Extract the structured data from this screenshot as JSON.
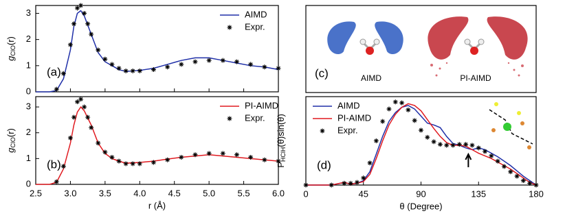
{
  "chart_data": [
    {
      "type": "line",
      "panel_label": "(a)",
      "y_label": {
        "main": "g",
        "sub": "ClO",
        "tail": "(r)"
      },
      "xlim": [
        2.5,
        6.0
      ],
      "xticks": [
        2.5,
        3,
        3.5,
        4,
        4.5,
        5,
        5.5,
        6
      ],
      "show_xtick_labels": false,
      "ylim": [
        0,
        3.3
      ],
      "yticks": [
        0,
        1,
        2,
        3
      ],
      "legend": "upper right",
      "series": [
        {
          "name": "AIMD",
          "color": "#1f2fa8",
          "style": "line",
          "x": [
            2.5,
            2.7,
            2.8,
            2.9,
            3.0,
            3.05,
            3.1,
            3.15,
            3.2,
            3.3,
            3.4,
            3.5,
            3.6,
            3.7,
            3.8,
            4.0,
            4.2,
            4.4,
            4.6,
            4.8,
            5.0,
            5.2,
            5.4,
            5.6,
            5.8,
            6.0
          ],
          "values": [
            0,
            0,
            0.05,
            0.5,
            1.6,
            2.5,
            3.0,
            3.1,
            2.9,
            2.2,
            1.5,
            1.15,
            1.0,
            0.85,
            0.78,
            0.82,
            0.9,
            1.05,
            1.2,
            1.3,
            1.3,
            1.2,
            1.1,
            1.0,
            0.95,
            0.85
          ]
        },
        {
          "name": "Expr.",
          "color": "#000000",
          "style": "star",
          "x": [
            2.8,
            2.9,
            3.0,
            3.05,
            3.1,
            3.15,
            3.2,
            3.25,
            3.3,
            3.4,
            3.5,
            3.6,
            3.7,
            3.8,
            3.9,
            4.0,
            4.2,
            4.4,
            4.6,
            4.8,
            5.0,
            5.2,
            5.4,
            5.6,
            5.8,
            6.0
          ],
          "values": [
            0.1,
            0.7,
            1.8,
            2.6,
            3.2,
            3.3,
            3.0,
            2.6,
            2.2,
            1.6,
            1.25,
            1.05,
            0.9,
            0.8,
            0.8,
            0.8,
            0.85,
            0.95,
            1.05,
            1.15,
            1.2,
            1.2,
            1.15,
            1.05,
            0.95,
            0.9
          ]
        }
      ]
    },
    {
      "type": "line",
      "panel_label": "(b)",
      "y_label": {
        "main": "g",
        "sub": "ClO",
        "tail": "(r)"
      },
      "x_label": "r (Å)",
      "xlim": [
        2.5,
        6.0
      ],
      "xticks": [
        2.5,
        {
          "value": 3,
          "label": "3.0"
        },
        3.5,
        {
          "value": 4,
          "label": "4.0"
        },
        4.5,
        {
          "value": 5,
          "label": "5.0"
        },
        5.5,
        {
          "value": 6,
          "label": "6.0"
        }
      ],
      "show_xtick_labels": true,
      "ylim": [
        0,
        3.4
      ],
      "yticks": [
        0,
        1,
        2,
        3
      ],
      "legend": "upper right",
      "series": [
        {
          "name": "PI-AIMD",
          "color": "#e0191f",
          "style": "line",
          "x": [
            2.5,
            2.7,
            2.8,
            2.9,
            3.0,
            3.05,
            3.1,
            3.15,
            3.2,
            3.3,
            3.4,
            3.5,
            3.6,
            3.7,
            3.8,
            4.0,
            4.2,
            4.4,
            4.6,
            4.8,
            5.0,
            5.2,
            5.4,
            5.6,
            5.8,
            6.0
          ],
          "values": [
            0,
            0,
            0.08,
            0.6,
            1.6,
            2.3,
            2.8,
            3.0,
            2.85,
            2.3,
            1.6,
            1.2,
            1.0,
            0.9,
            0.82,
            0.85,
            0.9,
            0.98,
            1.05,
            1.1,
            1.15,
            1.1,
            1.05,
            1.0,
            0.95,
            0.9
          ]
        },
        {
          "name": "Expr.",
          "color": "#000000",
          "style": "star",
          "x": [
            2.8,
            2.9,
            3.0,
            3.05,
            3.1,
            3.15,
            3.2,
            3.25,
            3.3,
            3.4,
            3.5,
            3.6,
            3.7,
            3.8,
            3.9,
            4.0,
            4.2,
            4.4,
            4.6,
            4.8,
            5.0,
            5.2,
            5.4,
            5.6,
            5.8,
            6.0
          ],
          "values": [
            0.1,
            0.7,
            1.8,
            2.6,
            3.2,
            3.3,
            3.0,
            2.6,
            2.2,
            1.6,
            1.25,
            1.05,
            0.9,
            0.8,
            0.8,
            0.8,
            0.85,
            0.95,
            1.05,
            1.15,
            1.2,
            1.2,
            1.15,
            1.05,
            0.95,
            0.9
          ]
        }
      ]
    },
    {
      "type": "line",
      "panel_label": "(d)",
      "y_label": {
        "main": "P",
        "sub": "HClH",
        "tail": "(θ)sin(θ)"
      },
      "x_label": "θ (Degree)",
      "xlim": [
        0,
        180
      ],
      "xticks": [
        0,
        45,
        90,
        135,
        180
      ],
      "show_xtick_labels": true,
      "ylim": [
        0,
        1
      ],
      "legend": "upper left",
      "arrow_x": 127,
      "series": [
        {
          "name": "AIMD",
          "color": "#1f2fa8",
          "style": "line",
          "x": [
            0,
            20,
            30,
            35,
            40,
            45,
            50,
            55,
            60,
            65,
            70,
            75,
            80,
            85,
            90,
            95,
            100,
            105,
            110,
            115,
            120,
            125,
            130,
            135,
            140,
            145,
            150,
            155,
            160,
            165,
            170,
            175,
            180
          ],
          "values": [
            0,
            0,
            0.03,
            0.01,
            0.02,
            0.05,
            0.15,
            0.35,
            0.55,
            0.72,
            0.82,
            0.88,
            0.9,
            0.86,
            0.78,
            0.7,
            0.68,
            0.65,
            0.55,
            0.47,
            0.45,
            0.42,
            0.4,
            0.42,
            0.4,
            0.36,
            0.32,
            0.27,
            0.22,
            0.16,
            0.1,
            0.05,
            0
          ]
        },
        {
          "name": "PI-AIMD",
          "color": "#e0191f",
          "style": "line",
          "x": [
            0,
            20,
            30,
            35,
            40,
            45,
            50,
            55,
            60,
            65,
            70,
            75,
            80,
            85,
            90,
            95,
            100,
            105,
            110,
            115,
            120,
            125,
            130,
            135,
            140,
            145,
            150,
            155,
            160,
            165,
            170,
            175,
            180
          ],
          "values": [
            0,
            0,
            0.03,
            0.01,
            0.02,
            0.04,
            0.12,
            0.3,
            0.5,
            0.68,
            0.8,
            0.88,
            0.92,
            0.9,
            0.84,
            0.74,
            0.64,
            0.55,
            0.48,
            0.45,
            0.45,
            0.44,
            0.4,
            0.36,
            0.33,
            0.3,
            0.26,
            0.22,
            0.18,
            0.13,
            0.08,
            0.03,
            0
          ]
        },
        {
          "name": "Expr.",
          "color": "#000000",
          "style": "star",
          "x": [
            0,
            20,
            30,
            35,
            40,
            45,
            50,
            55,
            60,
            65,
            70,
            75,
            80,
            85,
            90,
            95,
            100,
            105,
            110,
            115,
            120,
            125,
            130,
            135,
            140,
            145,
            150,
            155,
            160,
            165,
            170,
            175,
            180
          ],
          "values": [
            0,
            0,
            0.02,
            0.02,
            0.03,
            0.08,
            0.25,
            0.5,
            0.72,
            0.86,
            0.94,
            0.93,
            0.85,
            0.73,
            0.62,
            0.54,
            0.49,
            0.46,
            0.45,
            0.45,
            0.46,
            0.46,
            0.45,
            0.42,
            0.38,
            0.33,
            0.27,
            0.21,
            0.15,
            0.1,
            0.05,
            0.02,
            0
          ]
        }
      ]
    }
  ],
  "image_panel": {
    "panel_label": "(c)",
    "captions": [
      "AIMD",
      "PI-AIMD"
    ]
  }
}
